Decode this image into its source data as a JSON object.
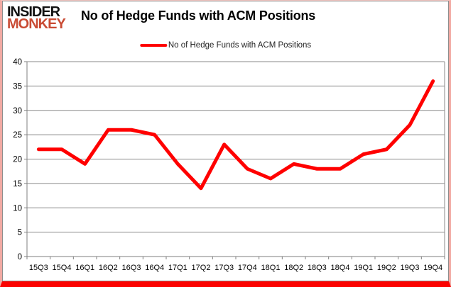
{
  "logo": {
    "line1": "INSIDER",
    "line2": "MONKEY"
  },
  "header": {
    "title": "No of Hedge Funds with ACM Positions"
  },
  "legend": {
    "label": "No of Hedge Funds with ACM Positions"
  },
  "colors": {
    "line": "#ff0000",
    "grid": "#8a8a8a",
    "axis": "#7f7f7f",
    "tick_text": "#000000",
    "logo_black": "#111111",
    "logo_red": "#c94b34",
    "border_pink": "#f2aaa3",
    "border_bottom_red": "#fb0200"
  },
  "chart_data": {
    "type": "line",
    "title": "No of Hedge Funds with ACM Positions",
    "categories": [
      "15Q3",
      "15Q4",
      "16Q1",
      "16Q2",
      "16Q3",
      "16Q4",
      "17Q1",
      "17Q2",
      "17Q3",
      "17Q4",
      "18Q1",
      "18Q2",
      "18Q3",
      "18Q4",
      "19Q1",
      "19Q2",
      "19Q3",
      "19Q4"
    ],
    "series": [
      {
        "name": "No of Hedge Funds with ACM Positions",
        "color": "#ff0000",
        "values": [
          22,
          22,
          19,
          26,
          26,
          25,
          19,
          14,
          23,
          18,
          16,
          19,
          18,
          18,
          21,
          22,
          27,
          36
        ]
      }
    ],
    "ylim": [
      0,
      40
    ],
    "yticks": [
      0,
      5,
      10,
      15,
      20,
      25,
      30,
      35,
      40
    ],
    "grid": true,
    "legend_position": "top-center",
    "xlabel": "",
    "ylabel": ""
  }
}
